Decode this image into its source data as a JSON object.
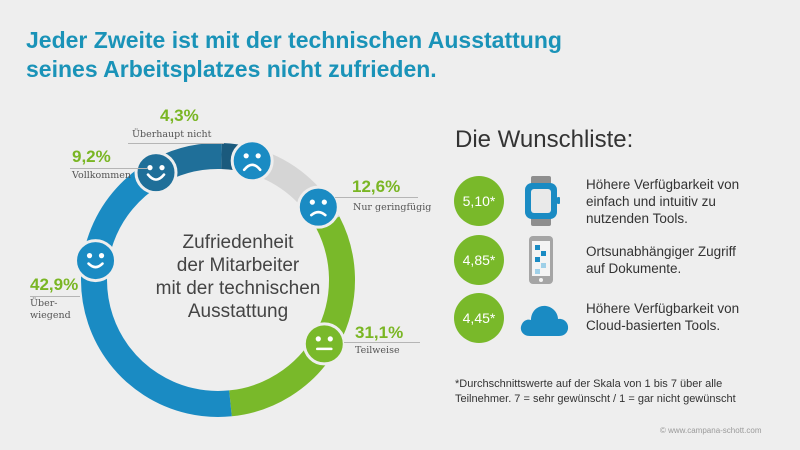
{
  "title": {
    "line1": "Jeder Zweite ist mit der technischen Ausstattung",
    "line2": "seines Arbeitsplatzes nicht zufrieden."
  },
  "chart_data": {
    "type": "pie",
    "center_label": [
      "Zufriedenheit",
      "der Mitarbeiter",
      "mit der technischen",
      "Ausstattung"
    ],
    "slices": [
      {
        "label": "Überhaupt nicht",
        "value": 4.3,
        "value_label": "4,3%",
        "color": "#1b5a7d",
        "face": "very-sad"
      },
      {
        "label": "Nur geringfügig",
        "value": 12.6,
        "value_label": "12,6%",
        "color": "#d5d5d5",
        "face": "sad"
      },
      {
        "label": "Teilweise",
        "value": 31.1,
        "value_label": "31,1%",
        "color": "#79b92a",
        "face": "neutral"
      },
      {
        "label": "Über-\nwiegend",
        "value": 42.9,
        "value_label": "42,9%",
        "color": "#1a8bc3",
        "face": "happy"
      },
      {
        "label": "Vollkommen",
        "value": 9.2,
        "value_label": "9,2%",
        "color": "#1f6f99",
        "face": "very-happy"
      }
    ]
  },
  "wishlist": {
    "title": "Die Wunschliste:",
    "items": [
      {
        "score": "5,10*",
        "icon": "smartwatch-icon",
        "text": [
          "Höhere Verfügbarkeit von",
          "einfach und intuitiv zu",
          "nutzenden Tools."
        ]
      },
      {
        "score": "4,85*",
        "icon": "smartphone-icon",
        "text": [
          "Ortsunabhängiger Zugriff",
          "auf Dokumente."
        ]
      },
      {
        "score": "4,45*",
        "icon": "cloud-icon",
        "text": [
          "Höhere Verfügbarkeit von",
          "Cloud-basierten Tools."
        ]
      }
    ],
    "footnote": [
      "*Durchschnittswerte auf der Skala von 1 bis 7 über alle",
      "Teilnehmer. 7 = sehr gewünscht / 1 = gar nicht gewünscht"
    ]
  },
  "copyright": "© www.campana-schott.com",
  "colors": {
    "accent_blue": "#1a93b8",
    "green": "#79b92a"
  }
}
